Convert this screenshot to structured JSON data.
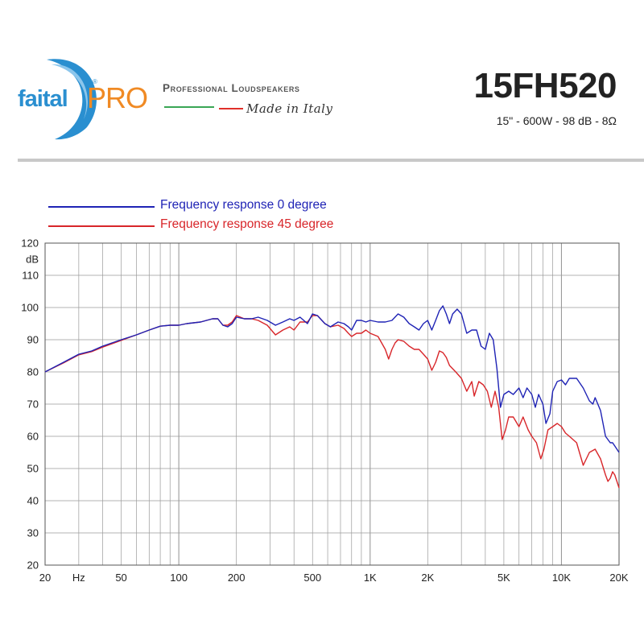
{
  "header": {
    "logo_text": "faitalPRO",
    "logo_mark": "®",
    "brand_line": "Professional Loudspeakers",
    "tagline": "Made in Italy",
    "model": "15FH520",
    "specs": "15\" - 600W - 98 dB - 8Ω"
  },
  "colors": {
    "series_0": "#1f23b5",
    "series_45": "#d8262a",
    "grid": "#9a9a9a",
    "logo_blue": "#2a8fd0",
    "logo_orange": "#f08a24"
  },
  "chart_data": {
    "type": "line",
    "x_scale": "log",
    "xlim": [
      20,
      20000
    ],
    "ylim": [
      20,
      120
    ],
    "ylabel": "dB",
    "grid": true,
    "legend_position": "top-left",
    "x_tick_labels": [
      "20",
      "Hz",
      "50",
      "100",
      "200",
      "500",
      "1K",
      "2K",
      "5K",
      "10K",
      "20K"
    ],
    "y_ticks": [
      20,
      30,
      40,
      50,
      60,
      70,
      80,
      90,
      100,
      110,
      120
    ],
    "series": [
      {
        "name": "Frequency response 0 degree",
        "color": "#1f23b5",
        "points": [
          [
            20,
            80
          ],
          [
            25,
            83
          ],
          [
            30,
            85.5
          ],
          [
            35,
            86.5
          ],
          [
            40,
            88
          ],
          [
            50,
            90
          ],
          [
            60,
            91.5
          ],
          [
            70,
            93
          ],
          [
            80,
            94.2
          ],
          [
            90,
            94.5
          ],
          [
            100,
            94.5
          ],
          [
            110,
            95
          ],
          [
            130,
            95.5
          ],
          [
            150,
            96.5
          ],
          [
            160,
            96.5
          ],
          [
            170,
            94.5
          ],
          [
            180,
            94
          ],
          [
            190,
            95
          ],
          [
            200,
            97
          ],
          [
            220,
            96.5
          ],
          [
            240,
            96.5
          ],
          [
            260,
            97
          ],
          [
            290,
            96
          ],
          [
            320,
            94.5
          ],
          [
            350,
            95.5
          ],
          [
            380,
            96.5
          ],
          [
            400,
            96
          ],
          [
            430,
            97
          ],
          [
            470,
            95
          ],
          [
            500,
            98
          ],
          [
            530,
            97.5
          ],
          [
            580,
            95
          ],
          [
            620,
            94
          ],
          [
            680,
            95.5
          ],
          [
            730,
            95
          ],
          [
            770,
            94
          ],
          [
            800,
            93
          ],
          [
            850,
            96
          ],
          [
            900,
            96
          ],
          [
            950,
            95.5
          ],
          [
            1000,
            96
          ],
          [
            1100,
            95.5
          ],
          [
            1200,
            95.5
          ],
          [
            1300,
            96
          ],
          [
            1400,
            98
          ],
          [
            1500,
            97
          ],
          [
            1600,
            95
          ],
          [
            1700,
            94
          ],
          [
            1800,
            93
          ],
          [
            1900,
            95
          ],
          [
            2000,
            96
          ],
          [
            2100,
            93
          ],
          [
            2200,
            96
          ],
          [
            2300,
            99
          ],
          [
            2400,
            100.5
          ],
          [
            2500,
            98
          ],
          [
            2600,
            95
          ],
          [
            2700,
            98
          ],
          [
            2850,
            99.5
          ],
          [
            3000,
            98
          ],
          [
            3200,
            92
          ],
          [
            3400,
            93
          ],
          [
            3600,
            93
          ],
          [
            3800,
            88
          ],
          [
            4000,
            87
          ],
          [
            4200,
            92
          ],
          [
            4400,
            90
          ],
          [
            4600,
            81
          ],
          [
            4800,
            69
          ],
          [
            5000,
            73
          ],
          [
            5300,
            74
          ],
          [
            5600,
            73
          ],
          [
            6000,
            75
          ],
          [
            6300,
            72
          ],
          [
            6600,
            75
          ],
          [
            7000,
            73
          ],
          [
            7300,
            69
          ],
          [
            7600,
            73
          ],
          [
            8000,
            70
          ],
          [
            8300,
            64
          ],
          [
            8700,
            67
          ],
          [
            9000,
            74
          ],
          [
            9500,
            77
          ],
          [
            10000,
            77.5
          ],
          [
            10500,
            76
          ],
          [
            11000,
            78
          ],
          [
            12000,
            78
          ],
          [
            13000,
            75
          ],
          [
            14000,
            71
          ],
          [
            14600,
            70
          ],
          [
            15000,
            72
          ],
          [
            16000,
            68
          ],
          [
            17000,
            60
          ],
          [
            18000,
            58
          ],
          [
            18500,
            58
          ],
          [
            19000,
            57
          ],
          [
            20000,
            55
          ]
        ]
      },
      {
        "name": "Frequency response 45 degree",
        "color": "#d8262a",
        "points": [
          [
            20,
            80
          ],
          [
            25,
            82.8
          ],
          [
            30,
            85.3
          ],
          [
            35,
            86.3
          ],
          [
            40,
            87.7
          ],
          [
            50,
            89.8
          ],
          [
            60,
            91.5
          ],
          [
            70,
            93
          ],
          [
            80,
            94.2
          ],
          [
            90,
            94.5
          ],
          [
            100,
            94.5
          ],
          [
            110,
            95
          ],
          [
            130,
            95.5
          ],
          [
            150,
            96.5
          ],
          [
            160,
            96.5
          ],
          [
            170,
            94.5
          ],
          [
            180,
            94.5
          ],
          [
            190,
            95.5
          ],
          [
            200,
            97.5
          ],
          [
            220,
            96.5
          ],
          [
            240,
            96.5
          ],
          [
            260,
            96
          ],
          [
            290,
            94.5
          ],
          [
            320,
            91.5
          ],
          [
            350,
            93
          ],
          [
            380,
            94
          ],
          [
            400,
            93
          ],
          [
            430,
            95.5
          ],
          [
            470,
            95.5
          ],
          [
            500,
            97.5
          ],
          [
            530,
            97.5
          ],
          [
            580,
            95
          ],
          [
            620,
            94
          ],
          [
            680,
            94.5
          ],
          [
            730,
            93.5
          ],
          [
            770,
            92
          ],
          [
            800,
            91
          ],
          [
            850,
            92
          ],
          [
            900,
            92
          ],
          [
            950,
            93
          ],
          [
            1000,
            92
          ],
          [
            1100,
            91
          ],
          [
            1200,
            87
          ],
          [
            1250,
            84
          ],
          [
            1300,
            87
          ],
          [
            1350,
            89
          ],
          [
            1400,
            90
          ],
          [
            1500,
            89.5
          ],
          [
            1600,
            88
          ],
          [
            1700,
            87
          ],
          [
            1800,
            87
          ],
          [
            1900,
            85.5
          ],
          [
            2000,
            84
          ],
          [
            2100,
            80.5
          ],
          [
            2200,
            83
          ],
          [
            2300,
            86.5
          ],
          [
            2400,
            86
          ],
          [
            2500,
            84.5
          ],
          [
            2600,
            82
          ],
          [
            2800,
            80
          ],
          [
            3000,
            78
          ],
          [
            3200,
            74
          ],
          [
            3400,
            77
          ],
          [
            3500,
            72.5
          ],
          [
            3700,
            77
          ],
          [
            3900,
            76
          ],
          [
            4100,
            74
          ],
          [
            4300,
            69
          ],
          [
            4500,
            74
          ],
          [
            4700,
            69
          ],
          [
            4900,
            59
          ],
          [
            5100,
            62
          ],
          [
            5300,
            66
          ],
          [
            5600,
            66
          ],
          [
            6000,
            63
          ],
          [
            6300,
            66
          ],
          [
            6700,
            62
          ],
          [
            7000,
            60
          ],
          [
            7400,
            58
          ],
          [
            7800,
            53
          ],
          [
            8100,
            56
          ],
          [
            8500,
            62
          ],
          [
            9000,
            63
          ],
          [
            9500,
            64
          ],
          [
            10000,
            63
          ],
          [
            10500,
            61
          ],
          [
            11000,
            60
          ],
          [
            12000,
            58
          ],
          [
            13000,
            51
          ],
          [
            14000,
            55
          ],
          [
            15000,
            56
          ],
          [
            16000,
            53
          ],
          [
            17000,
            48
          ],
          [
            17500,
            46
          ],
          [
            18000,
            47
          ],
          [
            18500,
            49
          ],
          [
            19000,
            48
          ],
          [
            20000,
            44
          ]
        ]
      }
    ]
  }
}
